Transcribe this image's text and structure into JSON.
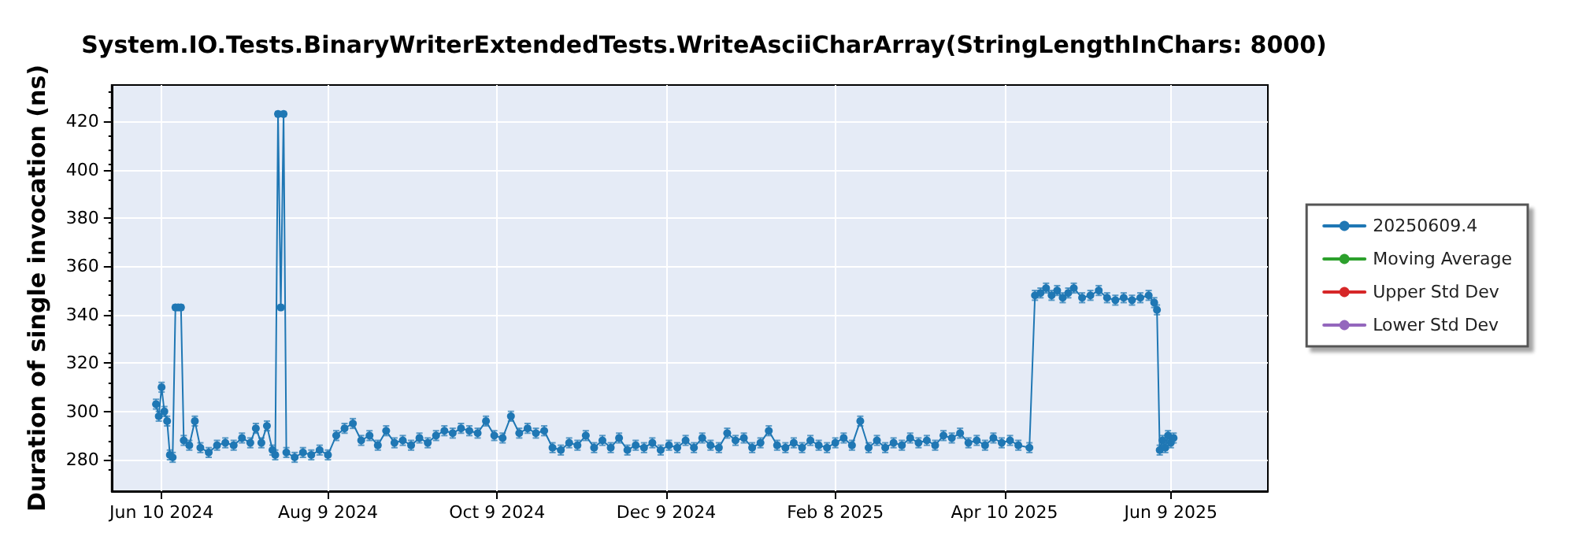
{
  "chart_data": {
    "type": "line",
    "title": "System.IO.Tests.BinaryWriterExtendedTests.WriteAsciiCharArray(StringLengthInChars: 8000)",
    "ylabel": "Duration of single invocation (ns)",
    "xlim": [
      "2024-05-23",
      "2025-07-14"
    ],
    "xticks": [
      {
        "value": "2024-06-10",
        "label": "Jun 10 2024"
      },
      {
        "value": "2024-08-09",
        "label": "Aug 9 2024"
      },
      {
        "value": "2024-10-09",
        "label": "Oct 9 2024"
      },
      {
        "value": "2024-12-09",
        "label": "Dec 9 2024"
      },
      {
        "value": "2025-02-08",
        "label": "Feb 8 2025"
      },
      {
        "value": "2025-04-10",
        "label": "Apr 10 2025"
      },
      {
        "value": "2025-06-09",
        "label": "Jun 9 2025"
      }
    ],
    "ylim": [
      267,
      435
    ],
    "yticks": [
      280,
      300,
      320,
      340,
      360,
      380,
      400,
      420
    ],
    "grid": true,
    "legend": "right",
    "marker": "circle",
    "x": [
      "2024-06-08",
      "2024-06-09",
      "2024-06-10",
      "2024-06-11",
      "2024-06-12",
      "2024-06-13",
      "2024-06-14",
      "2024-06-15",
      "2024-06-16",
      "2024-06-17",
      "2024-06-18",
      "2024-06-20",
      "2024-06-22",
      "2024-06-24",
      "2024-06-27",
      "2024-06-30",
      "2024-07-03",
      "2024-07-06",
      "2024-07-09",
      "2024-07-12",
      "2024-07-14",
      "2024-07-16",
      "2024-07-18",
      "2024-07-20",
      "2024-07-21",
      "2024-07-22",
      "2024-07-23",
      "2024-07-24",
      "2024-07-25",
      "2024-07-28",
      "2024-07-31",
      "2024-08-03",
      "2024-08-06",
      "2024-08-09",
      "2024-08-12",
      "2024-08-15",
      "2024-08-18",
      "2024-08-21",
      "2024-08-24",
      "2024-08-27",
      "2024-08-30",
      "2024-09-02",
      "2024-09-05",
      "2024-09-08",
      "2024-09-11",
      "2024-09-14",
      "2024-09-17",
      "2024-09-20",
      "2024-09-23",
      "2024-09-26",
      "2024-09-29",
      "2024-10-02",
      "2024-10-05",
      "2024-10-08",
      "2024-10-11",
      "2024-10-14",
      "2024-10-17",
      "2024-10-20",
      "2024-10-23",
      "2024-10-26",
      "2024-10-29",
      "2024-11-01",
      "2024-11-04",
      "2024-11-07",
      "2024-11-10",
      "2024-11-13",
      "2024-11-16",
      "2024-11-19",
      "2024-11-22",
      "2024-11-25",
      "2024-11-28",
      "2024-12-01",
      "2024-12-04",
      "2024-12-07",
      "2024-12-10",
      "2024-12-13",
      "2024-12-16",
      "2024-12-19",
      "2024-12-22",
      "2024-12-25",
      "2024-12-28",
      "2024-12-31",
      "2025-01-03",
      "2025-01-06",
      "2025-01-09",
      "2025-01-12",
      "2025-01-15",
      "2025-01-18",
      "2025-01-21",
      "2025-01-24",
      "2025-01-27",
      "2025-01-30",
      "2025-02-02",
      "2025-02-05",
      "2025-02-08",
      "2025-02-11",
      "2025-02-14",
      "2025-02-17",
      "2025-02-20",
      "2025-02-23",
      "2025-02-26",
      "2025-03-01",
      "2025-03-04",
      "2025-03-07",
      "2025-03-10",
      "2025-03-13",
      "2025-03-16",
      "2025-03-19",
      "2025-03-22",
      "2025-03-25",
      "2025-03-28",
      "2025-03-31",
      "2025-04-03",
      "2025-04-06",
      "2025-04-09",
      "2025-04-12",
      "2025-04-15",
      "2025-04-19",
      "2025-04-21",
      "2025-04-23",
      "2025-04-25",
      "2025-04-27",
      "2025-04-29",
      "2025-05-01",
      "2025-05-03",
      "2025-05-05",
      "2025-05-08",
      "2025-05-11",
      "2025-05-14",
      "2025-05-17",
      "2025-05-20",
      "2025-05-23",
      "2025-05-26",
      "2025-05-29",
      "2025-06-01",
      "2025-06-03",
      "2025-06-04",
      "2025-06-05",
      "2025-06-06",
      "2025-06-07",
      "2025-06-08",
      "2025-06-09",
      "2025-06-10"
    ],
    "series": [
      {
        "name": "20250609.4",
        "color": "#1f77b4",
        "values": [
          303,
          298,
          310,
          300,
          296,
          282,
          281,
          343,
          343,
          343,
          288,
          286,
          296,
          285,
          283,
          286,
          287,
          286,
          289,
          287,
          293,
          287,
          294,
          284,
          282,
          423,
          343,
          423,
          283,
          281,
          283,
          282,
          284,
          282,
          290,
          293,
          295,
          288,
          290,
          286,
          292,
          287,
          288,
          286,
          289,
          287,
          290,
          292,
          291,
          293,
          292,
          291,
          296,
          290,
          289,
          298,
          291,
          293,
          291,
          292,
          285,
          284,
          287,
          286,
          290,
          285,
          288,
          285,
          289,
          284,
          286,
          285,
          287,
          284,
          286,
          285,
          288,
          285,
          289,
          286,
          285,
          291,
          288,
          289,
          285,
          287,
          292,
          286,
          285,
          287,
          285,
          288,
          286,
          285,
          287,
          289,
          286,
          296,
          285,
          288,
          285,
          287,
          286,
          289,
          287,
          288,
          286,
          290,
          289,
          291,
          287,
          288,
          286,
          289,
          287,
          288,
          286,
          285,
          348,
          349,
          351,
          348,
          350,
          347,
          349,
          351,
          347,
          348,
          350,
          347,
          346,
          347,
          346,
          347,
          348,
          345,
          342,
          284,
          288,
          285,
          290,
          287,
          289
        ],
        "errors": [
          2,
          2,
          2,
          2,
          2,
          2,
          2,
          1,
          1,
          1,
          2,
          2,
          2,
          2,
          2,
          2,
          2,
          2,
          2,
          2,
          2,
          2,
          2,
          2,
          2,
          1,
          1,
          1,
          2,
          2,
          2,
          2,
          2,
          2,
          2,
          2,
          2,
          2,
          2,
          2,
          2,
          2,
          2,
          2,
          2,
          2,
          2,
          2,
          2,
          2,
          2,
          2,
          2,
          2,
          2,
          2,
          2,
          2,
          2,
          2,
          2,
          2,
          2,
          2,
          2,
          2,
          2,
          2,
          2,
          2,
          2,
          2,
          2,
          2,
          2,
          2,
          2,
          2,
          2,
          2,
          2,
          2,
          2,
          2,
          2,
          2,
          2,
          2,
          2,
          2,
          2,
          2,
          2,
          2,
          2,
          2,
          2,
          2,
          2,
          2,
          2,
          2,
          2,
          2,
          2,
          2,
          2,
          2,
          2,
          2,
          2,
          2,
          2,
          2,
          2,
          2,
          2,
          2,
          2,
          2,
          2,
          2,
          2,
          2,
          2,
          2,
          2,
          2,
          2,
          2,
          2,
          2,
          2,
          2,
          2,
          2,
          2,
          2,
          2,
          2,
          2,
          2,
          2
        ]
      },
      {
        "name": "Moving Average",
        "color": "#2ca02c",
        "values": [
          null,
          null,
          null,
          null,
          null,
          null,
          null,
          null,
          null,
          null,
          null,
          null,
          null,
          null,
          null,
          null,
          null,
          null,
          null,
          null,
          null,
          null,
          null,
          null,
          null,
          null,
          null,
          null,
          null,
          null,
          null,
          null,
          null,
          null,
          null,
          null,
          null,
          null,
          null,
          null,
          null,
          null,
          null,
          null,
          null,
          null,
          null,
          null,
          null,
          null,
          null,
          null,
          null,
          null,
          null,
          null,
          null,
          null,
          null,
          null,
          null,
          null,
          null,
          null,
          null,
          null,
          null,
          null,
          null,
          null,
          null,
          null,
          null,
          null,
          null,
          null,
          null,
          null,
          null,
          null,
          null,
          null,
          null,
          null,
          null,
          null,
          null,
          null,
          null,
          null,
          null,
          null,
          null,
          null,
          null,
          null,
          null,
          null,
          null,
          null,
          null,
          null,
          null,
          null,
          null,
          null,
          null,
          null,
          null,
          null,
          null,
          null,
          null,
          null,
          null,
          null,
          null,
          null,
          null,
          null,
          null,
          null,
          null,
          null,
          null,
          null,
          null,
          null,
          null,
          null,
          null,
          null,
          null,
          null,
          null,
          null,
          null,
          null,
          null,
          null,
          null,
          null,
          null
        ]
      },
      {
        "name": "Upper Std Dev",
        "color": "#d62728",
        "values": [
          null,
          null,
          null,
          null,
          null,
          null,
          null,
          null,
          null,
          null,
          null,
          null,
          null,
          null,
          null,
          null,
          null,
          null,
          null,
          null,
          null,
          null,
          null,
          null,
          null,
          null,
          null,
          null,
          null,
          null,
          null,
          null,
          null,
          null,
          null,
          null,
          null,
          null,
          null,
          null,
          null,
          null,
          null,
          null,
          null,
          null,
          null,
          null,
          null,
          null,
          null,
          null,
          null,
          null,
          null,
          null,
          null,
          null,
          null,
          null,
          null,
          null,
          null,
          null,
          null,
          null,
          null,
          null,
          null,
          null,
          null,
          null,
          null,
          null,
          null,
          null,
          null,
          null,
          null,
          null,
          null,
          null,
          null,
          null,
          null,
          null,
          null,
          null,
          null,
          null,
          null,
          null,
          null,
          null,
          null,
          null,
          null,
          null,
          null,
          null,
          null,
          null,
          null,
          null,
          null,
          null,
          null,
          null,
          null,
          null,
          null,
          null,
          null,
          null,
          null,
          null,
          null,
          null,
          null,
          null,
          null,
          null,
          null,
          null,
          null,
          null,
          null,
          null,
          null,
          null,
          null,
          null,
          null,
          null,
          null,
          null,
          null,
          null,
          null,
          null,
          null,
          null,
          null
        ]
      },
      {
        "name": "Lower Std Dev",
        "color": "#9467bd",
        "values": [
          null,
          null,
          null,
          null,
          null,
          null,
          null,
          null,
          null,
          null,
          null,
          null,
          null,
          null,
          null,
          null,
          null,
          null,
          null,
          null,
          null,
          null,
          null,
          null,
          null,
          null,
          null,
          null,
          null,
          null,
          null,
          null,
          null,
          null,
          null,
          null,
          null,
          null,
          null,
          null,
          null,
          null,
          null,
          null,
          null,
          null,
          null,
          null,
          null,
          null,
          null,
          null,
          null,
          null,
          null,
          null,
          null,
          null,
          null,
          null,
          null,
          null,
          null,
          null,
          null,
          null,
          null,
          null,
          null,
          null,
          null,
          null,
          null,
          null,
          null,
          null,
          null,
          null,
          null,
          null,
          null,
          null,
          null,
          null,
          null,
          null,
          null,
          null,
          null,
          null,
          null,
          null,
          null,
          null,
          null,
          null,
          null,
          null,
          null,
          null,
          null,
          null,
          null,
          null,
          null,
          null,
          null,
          null,
          null,
          null,
          null,
          null,
          null,
          null,
          null,
          null,
          null,
          null,
          null,
          null,
          null,
          null,
          null,
          null,
          null,
          null,
          null,
          null,
          null,
          null,
          null,
          null,
          null,
          null,
          null,
          null,
          null,
          null,
          null,
          null,
          null,
          null,
          null
        ]
      }
    ]
  }
}
